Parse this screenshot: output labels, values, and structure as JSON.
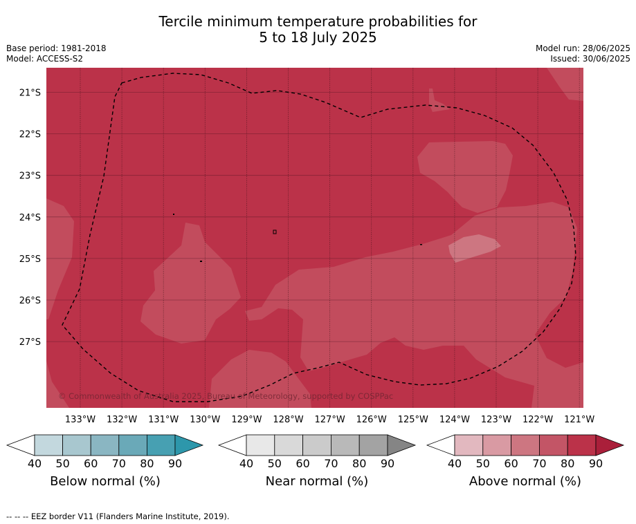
{
  "title": {
    "line1": "Tercile minimum temperature probabilities for",
    "line2": "5 to 18 July 2025"
  },
  "meta": {
    "base_period": "Base period: 1981-2018",
    "model": "Model: ACCESS-S2",
    "model_run": "Model run: 28/06/2025",
    "issued": "Issued: 30/06/2025"
  },
  "map": {
    "lat_labels": [
      "21°S",
      "22°S",
      "23°S",
      "24°S",
      "25°S",
      "26°S",
      "27°S"
    ],
    "lon_labels": [
      "133°W",
      "132°W",
      "131°W",
      "130°W",
      "129°W",
      "128°W",
      "127°W",
      "126°W",
      "125°W",
      "124°W",
      "123°W",
      "122°W",
      "121°W"
    ],
    "copyright": "© Commonwealth of Australia 2025, Bureau of Meteorology, supported by COSPPac",
    "colors": {
      "above_80_90": "#bb3249",
      "above_70_80": "#c24c5d",
      "above_60_70": "#cd7681"
    }
  },
  "colorbars": [
    {
      "label": "Below normal (%)",
      "ticks": [
        "40",
        "50",
        "60",
        "70",
        "80",
        "90"
      ],
      "colors": [
        "#c3d8de",
        "#a8c7cf",
        "#8ab6c2",
        "#6aa9b8",
        "#47a0b2",
        "#2d97ab"
      ]
    },
    {
      "label": "Near normal (%)",
      "ticks": [
        "40",
        "50",
        "60",
        "70",
        "80",
        "90"
      ],
      "colors": [
        "#e8e8e8",
        "#d9d9d9",
        "#cbcbcb",
        "#b9b9b9",
        "#a3a3a3",
        "#858585"
      ]
    },
    {
      "label": "Above normal (%)",
      "ticks": [
        "40",
        "50",
        "60",
        "70",
        "80",
        "90"
      ],
      "colors": [
        "#e2b8bf",
        "#d99aa3",
        "#cd7681",
        "#c35566",
        "#bb3249",
        "#aa1f3a"
      ]
    }
  ],
  "footnote": "--  --  -- EEZ border V11 (Flanders Marine Institute, 2019)."
}
